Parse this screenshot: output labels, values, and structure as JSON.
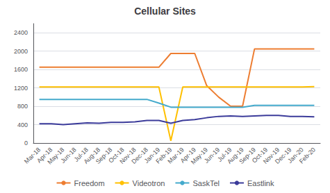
{
  "chart_data": {
    "type": "line",
    "title": "Cellular Sites",
    "categories": [
      "Mar-18",
      "Apr-18",
      "May-18",
      "Jun-18",
      "Jul-18",
      "Aug-18",
      "Sep-18",
      "Oct-18",
      "Nov-18",
      "Dec-18",
      "Jan-19",
      "Feb-19",
      "Mar-19",
      "Apr-19",
      "May-19",
      "Jun-19",
      "Jul-19",
      "Aug-19",
      "Sep-19",
      "Oct-19",
      "Nov-19",
      "Dec-19",
      "Jan-20",
      "Feb-20"
    ],
    "series": [
      {
        "name": "Freedom",
        "color": "#ED7D31",
        "values": [
          1650,
          1650,
          1650,
          1650,
          1650,
          1650,
          1650,
          1650,
          1650,
          1650,
          1650,
          1950,
          1950,
          1950,
          1250,
          1000,
          800,
          800,
          2050,
          2050,
          2050,
          2050,
          2050,
          2050
        ]
      },
      {
        "name": "Videotron",
        "color": "#FFC000",
        "values": [
          1220,
          1220,
          1220,
          1220,
          1220,
          1220,
          1220,
          1220,
          1220,
          1220,
          1220,
          50,
          1220,
          1220,
          1220,
          1220,
          1220,
          1220,
          1220,
          1220,
          1220,
          1220,
          1220,
          1230
        ]
      },
      {
        "name": "SaskTel",
        "color": "#44AACC",
        "values": [
          950,
          950,
          950,
          950,
          950,
          950,
          950,
          950,
          950,
          950,
          870,
          780,
          780,
          780,
          780,
          780,
          780,
          780,
          820,
          820,
          820,
          820,
          820,
          820
        ]
      },
      {
        "name": "Eastlink",
        "color": "#3B3B9A",
        "values": [
          420,
          420,
          400,
          420,
          440,
          430,
          450,
          450,
          460,
          490,
          490,
          430,
          490,
          510,
          550,
          580,
          590,
          580,
          590,
          600,
          600,
          580,
          580,
          570
        ]
      }
    ],
    "ylim": [
      0,
      2600
    ],
    "yticks": [
      0,
      400,
      800,
      1200,
      1600,
      2000,
      2400
    ],
    "grid": true,
    "legend": "bottom"
  }
}
